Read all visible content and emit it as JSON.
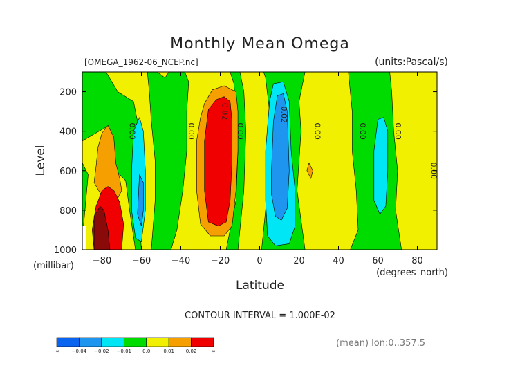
{
  "chart_data": {
    "type": "contour",
    "title": "Monthly Mean Omega",
    "file_label": "[OMEGA_1962-06_NCEP.nc]",
    "units_label": "(units:Pascal/s)",
    "xlabel": "Latitude",
    "x_unit": "(degrees_north)",
    "ylabel": "Level",
    "y_unit": "(millibar)",
    "xlim": [
      -90,
      90
    ],
    "ylim": [
      1000,
      100
    ],
    "x_ticks": [
      {
        "value": -80,
        "label": "−80"
      },
      {
        "value": -60,
        "label": "−60"
      },
      {
        "value": -40,
        "label": "−40"
      },
      {
        "value": -20,
        "label": "−20"
      },
      {
        "value": 0,
        "label": "0"
      },
      {
        "value": 20,
        "label": "20"
      },
      {
        "value": 40,
        "label": "40"
      },
      {
        "value": 60,
        "label": "60"
      },
      {
        "value": 80,
        "label": "80"
      }
    ],
    "y_ticks": [
      {
        "value": 200,
        "label": "200"
      },
      {
        "value": 400,
        "label": "400"
      },
      {
        "value": 600,
        "label": "600"
      },
      {
        "value": 800,
        "label": "800"
      },
      {
        "value": 1000,
        "label": "1000"
      }
    ],
    "contour_interval": "CONTOUR INTERVAL = 1.000E-02",
    "footnote": "(mean) lon:0..357.5",
    "colorbar": {
      "colors": [
        "#0a64f0",
        "#1e96f0",
        "#00e6f5",
        "#00dc00",
        "#f0f000",
        "#f5a000",
        "#f00000"
      ],
      "labels": [
        "-∞",
        "−0.04",
        "−0.02",
        "−0.01",
        "0.0",
        "0.01",
        "0.02",
        "∞"
      ]
    },
    "contour_labels": [
      {
        "text": "0.00",
        "lat": -66,
        "level": 400
      },
      {
        "text": "0.00",
        "lat": -36,
        "level": 400
      },
      {
        "text": "0.02",
        "lat": -19,
        "level": 300
      },
      {
        "text": "0.00",
        "lat": -11,
        "level": 400
      },
      {
        "text": "−0.02",
        "lat": 11,
        "level": 300
      },
      {
        "text": "0.00",
        "lat": 28,
        "level": 400
      },
      {
        "text": "0.00",
        "lat": 51,
        "level": 400
      },
      {
        "text": "0.00",
        "lat": 69,
        "level": 400
      },
      {
        "text": "0.00",
        "lat": 87,
        "level": 600
      }
    ],
    "regions": [
      {
        "name": "green-background",
        "color": "#00dc00",
        "poly": [
          [
            -90,
            100
          ],
          [
            90,
            100
          ],
          [
            90,
            1000
          ],
          [
            -90,
            1000
          ]
        ]
      },
      {
        "name": "yellow-left-margin",
        "color": "#f0f000",
        "poly": [
          [
            -90,
            450
          ],
          [
            -85,
            420
          ],
          [
            -78,
            380
          ],
          [
            -74,
            450
          ],
          [
            -73,
            600
          ],
          [
            -68,
            650
          ],
          [
            -66,
            800
          ],
          [
            -63,
            1000
          ],
          [
            -90,
            1000
          ],
          [
            -90,
            950
          ],
          [
            -87,
            620
          ],
          [
            -90,
            560
          ]
        ]
      },
      {
        "name": "yellow-west-band",
        "color": "#f0f000",
        "poly": [
          [
            -78,
            100
          ],
          [
            -57,
            100
          ],
          [
            -56,
            200
          ],
          [
            -55,
            350
          ],
          [
            -53,
            550
          ],
          [
            -53,
            750
          ],
          [
            -55,
            1000
          ],
          [
            -60,
            1000
          ],
          [
            -62,
            700
          ],
          [
            -61,
            400
          ],
          [
            -64,
            250
          ],
          [
            -72,
            200
          ]
        ]
      },
      {
        "name": "yellow-central-band",
        "color": "#f0f000",
        "poly": [
          [
            -52,
            100
          ],
          [
            -38,
            100
          ],
          [
            -36,
            150
          ],
          [
            -37,
            300
          ],
          [
            -37,
            500
          ],
          [
            -39,
            700
          ],
          [
            -42,
            900
          ],
          [
            -45,
            1000
          ],
          [
            -17,
            1000
          ],
          [
            -12,
            750
          ],
          [
            -11,
            500
          ],
          [
            -12,
            300
          ],
          [
            -13,
            160
          ],
          [
            -15,
            100
          ],
          [
            -46,
            100
          ],
          [
            -48,
            130
          ]
        ]
      },
      {
        "name": "yellow-mid-band",
        "color": "#f0f000",
        "poly": [
          [
            -10,
            100
          ],
          [
            2,
            100
          ],
          [
            3,
            130
          ],
          [
            5,
            300
          ],
          [
            4,
            500
          ],
          [
            4,
            700
          ],
          [
            2,
            900
          ],
          [
            1,
            1000
          ],
          [
            -11,
            1000
          ],
          [
            -8,
            700
          ],
          [
            -7,
            400
          ],
          [
            -8,
            200
          ]
        ]
      },
      {
        "name": "yellow-east-band",
        "color": "#f0f000",
        "poly": [
          [
            23,
            100
          ],
          [
            45,
            100
          ],
          [
            47,
            300
          ],
          [
            47,
            500
          ],
          [
            49,
            700
          ],
          [
            50,
            900
          ],
          [
            46,
            1000
          ],
          [
            23,
            1000
          ],
          [
            19,
            700
          ],
          [
            21,
            400
          ],
          [
            20,
            250
          ],
          [
            22,
            150
          ]
        ]
      },
      {
        "name": "yellow-far-east-band",
        "color": "#f0f000",
        "poly": [
          [
            66,
            100
          ],
          [
            90,
            100
          ],
          [
            90,
            1000
          ],
          [
            72,
            1000
          ],
          [
            69,
            800
          ],
          [
            70,
            600
          ],
          [
            68,
            400
          ],
          [
            67,
            200
          ]
        ]
      },
      {
        "name": "orange-west",
        "color": "#f5a000",
        "poly": [
          [
            -80,
            410
          ],
          [
            -77,
            370
          ],
          [
            -74,
            430
          ],
          [
            -73,
            560
          ],
          [
            -71,
            640
          ],
          [
            -70,
            700
          ],
          [
            -73,
            760
          ],
          [
            -80,
            730
          ],
          [
            -84,
            660
          ],
          [
            -83,
            580
          ],
          [
            -82,
            480
          ]
        ]
      },
      {
        "name": "orange-central",
        "color": "#f5a000",
        "poly": [
          [
            -28,
            260
          ],
          [
            -24,
            190
          ],
          [
            -18,
            170
          ],
          [
            -12,
            200
          ],
          [
            -11,
            300
          ],
          [
            -11,
            500
          ],
          [
            -12,
            700
          ],
          [
            -14,
            880
          ],
          [
            -18,
            930
          ],
          [
            -25,
            930
          ],
          [
            -30,
            870
          ],
          [
            -32,
            700
          ],
          [
            -32,
            450
          ],
          [
            -30,
            330
          ]
        ]
      },
      {
        "name": "orange-small",
        "color": "#f5a000",
        "poly": [
          [
            25,
            560
          ],
          [
            27,
            600
          ],
          [
            26,
            640
          ],
          [
            24,
            600
          ]
        ]
      },
      {
        "name": "red-central",
        "color": "#f00000",
        "poly": [
          [
            -26,
            290
          ],
          [
            -22,
            240
          ],
          [
            -18,
            225
          ],
          [
            -15,
            250
          ],
          [
            -14,
            350
          ],
          [
            -14,
            550
          ],
          [
            -15,
            750
          ],
          [
            -17,
            860
          ],
          [
            -21,
            880
          ],
          [
            -26,
            860
          ],
          [
            -28,
            700
          ],
          [
            -28,
            450
          ]
        ]
      },
      {
        "name": "red-west",
        "color": "#f00000",
        "poly": [
          [
            -83,
            780
          ],
          [
            -80,
            700
          ],
          [
            -77,
            680
          ],
          [
            -74,
            700
          ],
          [
            -71,
            760
          ],
          [
            -69,
            870
          ],
          [
            -70,
            1000
          ],
          [
            -84,
            1000
          ],
          [
            -85,
            900
          ]
        ]
      },
      {
        "name": "dark-red-west",
        "color": "#8a0a0a",
        "poly": [
          [
            -84,
            1000
          ],
          [
            -84,
            830
          ],
          [
            -81,
            780
          ],
          [
            -79,
            800
          ],
          [
            -77,
            900
          ],
          [
            -76,
            1000
          ]
        ]
      },
      {
        "name": "cyan-west",
        "color": "#00e6f5",
        "poly": [
          [
            -64,
            400
          ],
          [
            -61,
            330
          ],
          [
            -59,
            400
          ],
          [
            -58,
            600
          ],
          [
            -58,
            800
          ],
          [
            -60,
            960
          ],
          [
            -63,
            940
          ],
          [
            -65,
            800
          ],
          [
            -65,
            600
          ]
        ]
      },
      {
        "name": "cyan-east",
        "color": "#00e6f5",
        "poly": [
          [
            3,
            500
          ],
          [
            5,
            250
          ],
          [
            7,
            160
          ],
          [
            12,
            150
          ],
          [
            15,
            250
          ],
          [
            16,
            500
          ],
          [
            18,
            700
          ],
          [
            18,
            880
          ],
          [
            15,
            970
          ],
          [
            8,
            980
          ],
          [
            4,
            930
          ],
          [
            3,
            750
          ]
        ]
      },
      {
        "name": "cyan-far-east",
        "color": "#00e6f5",
        "poly": [
          [
            58,
            500
          ],
          [
            60,
            340
          ],
          [
            63,
            330
          ],
          [
            65,
            400
          ],
          [
            65,
            600
          ],
          [
            64,
            780
          ],
          [
            61,
            820
          ],
          [
            58,
            750
          ]
        ]
      },
      {
        "name": "blue-east",
        "color": "#1e96f0",
        "poly": [
          [
            6,
            600
          ],
          [
            7,
            350
          ],
          [
            9,
            220
          ],
          [
            12,
            210
          ],
          [
            14,
            300
          ],
          [
            15,
            600
          ],
          [
            14,
            790
          ],
          [
            11,
            850
          ],
          [
            8,
            830
          ],
          [
            6,
            720
          ]
        ]
      },
      {
        "name": "blue-west-sliver",
        "color": "#1e96f0",
        "poly": [
          [
            -61,
            620
          ],
          [
            -59,
            660
          ],
          [
            -59,
            800
          ],
          [
            -60,
            880
          ],
          [
            -62,
            820
          ]
        ]
      }
    ]
  }
}
